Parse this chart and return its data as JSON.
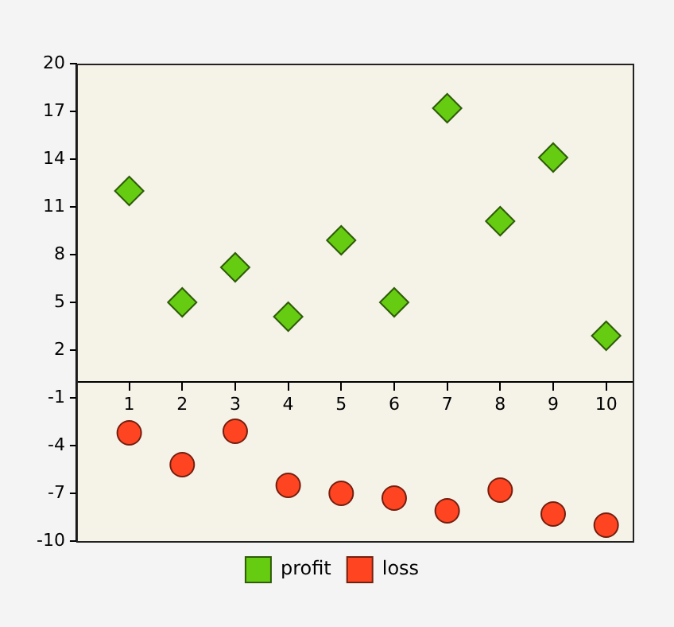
{
  "chart_data": {
    "type": "scatter",
    "x": [
      1,
      2,
      3,
      4,
      5,
      6,
      7,
      8,
      9,
      10
    ],
    "series": [
      {
        "name": "profit",
        "color": "#66cc11",
        "marker": "diamond",
        "values": [
          12,
          5,
          7.2,
          4.1,
          8.9,
          5,
          17.2,
          10.1,
          14.1,
          2.9
        ]
      },
      {
        "name": "loss",
        "color": "#ff4422",
        "marker": "circle",
        "values": [
          -3.2,
          -5.2,
          -3.1,
          -6.5,
          -7,
          -7.3,
          -8.1,
          -6.8,
          -8.3,
          -9
        ]
      }
    ],
    "xlim": [
      0,
      10.5
    ],
    "xticks": [
      1,
      2,
      3,
      4,
      5,
      6,
      7,
      8,
      9,
      10
    ],
    "ylim": [
      -10,
      20
    ],
    "yticks": [
      20,
      17,
      14,
      11,
      8,
      5,
      2,
      -1,
      -4,
      -7,
      -10
    ],
    "grid": false,
    "legend": "bottom"
  }
}
